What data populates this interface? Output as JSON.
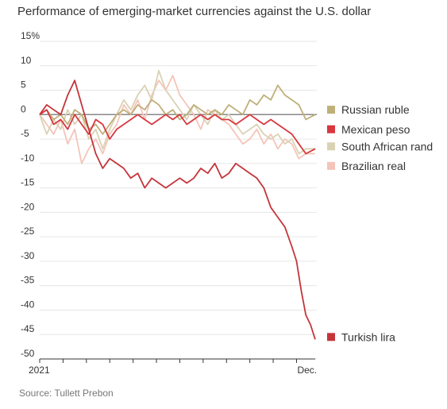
{
  "title": "Performance of emerging-market currencies against the U.S. dollar",
  "source": "Source: Tullett Prebon",
  "chart_data": {
    "type": "line",
    "title": "Performance of emerging-market currencies against the U.S. dollar",
    "ylim": [
      -50,
      15
    ],
    "y_ticks": [
      {
        "value": 15,
        "label": "15%"
      },
      {
        "value": 10,
        "label": "10"
      },
      {
        "value": 5,
        "label": "5"
      },
      {
        "value": 0,
        "label": "0"
      },
      {
        "value": -5,
        "label": "-5"
      },
      {
        "value": -10,
        "label": "-10"
      },
      {
        "value": -15,
        "label": "-15"
      },
      {
        "value": -20,
        "label": "-20"
      },
      {
        "value": -25,
        "label": "-25"
      },
      {
        "value": -30,
        "label": "-30"
      },
      {
        "value": -35,
        "label": "-35"
      },
      {
        "value": -40,
        "label": "-40"
      },
      {
        "value": -45,
        "label": "-45"
      },
      {
        "value": -50,
        "label": "-50"
      }
    ],
    "x_range": [
      0,
      11.8
    ],
    "x_ticks": [
      {
        "value": 0,
        "label": "2021"
      },
      {
        "value": 1,
        "label": ""
      },
      {
        "value": 2,
        "label": ""
      },
      {
        "value": 3,
        "label": ""
      },
      {
        "value": 4,
        "label": ""
      },
      {
        "value": 5,
        "label": ""
      },
      {
        "value": 6,
        "label": ""
      },
      {
        "value": 7,
        "label": ""
      },
      {
        "value": 8,
        "label": ""
      },
      {
        "value": 9,
        "label": ""
      },
      {
        "value": 10,
        "label": ""
      },
      {
        "value": 11,
        "label": "Dec."
      }
    ],
    "grid": true,
    "legend": "right",
    "series": [
      {
        "name": "Brazilian real",
        "color": "#f5c4b8",
        "label_y": -10.5,
        "x": [
          0,
          0.3,
          0.6,
          0.9,
          1.2,
          1.5,
          1.8,
          2.1,
          2.4,
          2.7,
          3.0,
          3.3,
          3.6,
          3.9,
          4.2,
          4.5,
          4.8,
          5.1,
          5.4,
          5.7,
          6.0,
          6.3,
          6.6,
          6.9,
          7.2,
          7.5,
          7.8,
          8.1,
          8.4,
          8.7,
          9.0,
          9.3,
          9.6,
          9.9,
          10.2,
          10.5,
          10.8,
          11.1,
          11.4,
          11.8
        ],
        "y": [
          0,
          -2,
          -4,
          -1,
          -6,
          -3,
          -10,
          -7,
          -5,
          -8,
          -4,
          -2,
          2,
          0,
          3,
          -1,
          4,
          7,
          5,
          8,
          4,
          2,
          0,
          -3,
          1,
          0,
          -1,
          -2,
          -4,
          -6,
          -5,
          -3,
          -6,
          -4,
          -7,
          -5,
          -6,
          -9,
          -8,
          -8
        ]
      },
      {
        "name": "South African rand",
        "color": "#d9d2b4",
        "label_y": -6.5,
        "x": [
          0,
          0.3,
          0.6,
          0.9,
          1.2,
          1.5,
          1.8,
          2.1,
          2.4,
          2.7,
          3.0,
          3.3,
          3.6,
          3.9,
          4.2,
          4.5,
          4.8,
          5.1,
          5.4,
          5.7,
          6.0,
          6.3,
          6.6,
          6.9,
          7.2,
          7.5,
          7.8,
          8.1,
          8.4,
          8.7,
          9.0,
          9.3,
          9.6,
          9.9,
          10.2,
          10.5,
          10.8,
          11.1,
          11.4,
          11.8
        ],
        "y": [
          0,
          -4,
          -1,
          -3,
          1,
          -2,
          0,
          -5,
          -3,
          -7,
          -3,
          0,
          3,
          1,
          4,
          6,
          3,
          9,
          5,
          3,
          1,
          -1,
          2,
          0,
          -2,
          1,
          -1,
          0,
          -2,
          -4,
          -3,
          -2,
          -4,
          -5,
          -4,
          -6,
          -5,
          -8,
          -7,
          -7
        ]
      },
      {
        "name": "Russian ruble",
        "color": "#bfb07a",
        "label_y": 1,
        "x": [
          0,
          0.3,
          0.6,
          0.9,
          1.2,
          1.5,
          1.8,
          2.1,
          2.4,
          2.7,
          3.0,
          3.3,
          3.6,
          3.9,
          4.2,
          4.5,
          4.8,
          5.1,
          5.4,
          5.7,
          6.0,
          6.3,
          6.6,
          6.9,
          7.2,
          7.5,
          7.8,
          8.1,
          8.4,
          8.7,
          9.0,
          9.3,
          9.6,
          9.9,
          10.2,
          10.5,
          10.8,
          11.1,
          11.4,
          11.8
        ],
        "y": [
          0,
          1,
          -1,
          0,
          -2,
          1,
          0,
          -3,
          -2,
          -4,
          -2,
          0,
          1,
          0,
          2,
          1,
          3,
          2,
          0,
          1,
          -1,
          0,
          2,
          1,
          0,
          1,
          0,
          2,
          1,
          0,
          3,
          2,
          4,
          3,
          6,
          4,
          3,
          2,
          -1,
          0
        ]
      },
      {
        "name": "Mexican peso",
        "color": "#d8383f",
        "label_y": -3,
        "x": [
          0,
          0.3,
          0.6,
          0.9,
          1.2,
          1.5,
          1.8,
          2.1,
          2.4,
          2.7,
          3.0,
          3.3,
          3.6,
          3.9,
          4.2,
          4.5,
          4.8,
          5.1,
          5.4,
          5.7,
          6.0,
          6.3,
          6.6,
          6.9,
          7.2,
          7.5,
          7.8,
          8.1,
          8.4,
          8.7,
          9.0,
          9.3,
          9.6,
          9.9,
          10.2,
          10.5,
          10.8,
          11.1,
          11.4,
          11.8
        ],
        "y": [
          0,
          1,
          -2,
          -1,
          -3,
          0,
          -2,
          -4,
          -1,
          -2,
          -5,
          -3,
          -2,
          -1,
          0,
          -1,
          -2,
          -1,
          0,
          -1,
          0,
          -2,
          -1,
          0,
          -1,
          0,
          -1,
          -1,
          -2,
          -1,
          0,
          -1,
          -2,
          -1,
          -2,
          -3,
          -4,
          -6,
          -8,
          -7
        ]
      },
      {
        "name": "Turkish lira",
        "color": "#c4353a",
        "label_y": -45.5,
        "x": [
          0,
          0.3,
          0.6,
          0.9,
          1.2,
          1.5,
          1.8,
          2.1,
          2.4,
          2.7,
          3.0,
          3.3,
          3.6,
          3.9,
          4.2,
          4.5,
          4.8,
          5.1,
          5.4,
          5.7,
          6.0,
          6.3,
          6.6,
          6.9,
          7.2,
          7.5,
          7.8,
          8.1,
          8.4,
          8.7,
          9.0,
          9.3,
          9.6,
          9.9,
          10.2,
          10.5,
          10.8,
          11.0,
          11.2,
          11.4,
          11.6,
          11.8
        ],
        "y": [
          0,
          2,
          1,
          0,
          4,
          7,
          2,
          -3,
          -8,
          -11,
          -9,
          -10,
          -11,
          -13,
          -12,
          -15,
          -13,
          -14,
          -15,
          -14,
          -13,
          -14,
          -13,
          -11,
          -12,
          -10,
          -13,
          -12,
          -10,
          -11,
          -12,
          -13,
          -15,
          -19,
          -21,
          -23,
          -27,
          -30,
          -36,
          -41,
          -43,
          -46
        ]
      }
    ]
  }
}
